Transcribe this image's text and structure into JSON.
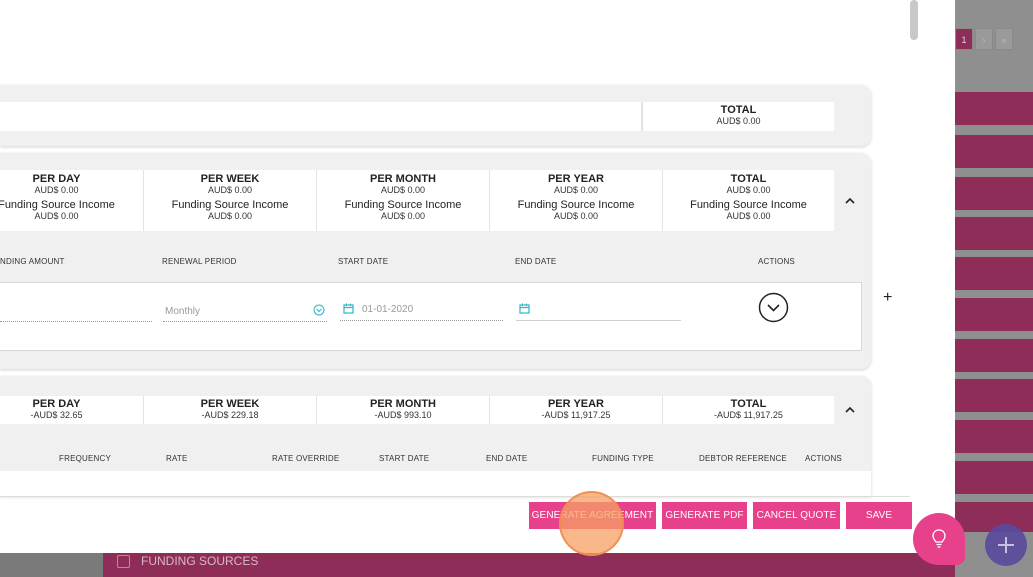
{
  "background": {
    "pager": [
      "1",
      "›",
      "»"
    ],
    "bottom_section_label": "FUNDING SOURCES"
  },
  "panel1": {
    "total_title": "TOTAL",
    "total_value": "AUD$ 0.00"
  },
  "panel2": {
    "summary": [
      {
        "title": "PER DAY",
        "value": "AUD$ 0.00",
        "sub_label": "Funding Source Income",
        "sub_value": "AUD$ 0.00"
      },
      {
        "title": "PER WEEK",
        "value": "AUD$ 0.00",
        "sub_label": "Funding Source Income",
        "sub_value": "AUD$ 0.00"
      },
      {
        "title": "PER MONTH",
        "value": "AUD$ 0.00",
        "sub_label": "Funding Source Income",
        "sub_value": "AUD$ 0.00"
      },
      {
        "title": "PER YEAR",
        "value": "AUD$ 0.00",
        "sub_label": "Funding Source Income",
        "sub_value": "AUD$ 0.00"
      },
      {
        "title": "TOTAL",
        "value": "AUD$ 0.00",
        "sub_label": "Funding Source Income",
        "sub_value": "AUD$ 0.00"
      }
    ],
    "columns": [
      "NDING AMOUNT",
      "RENEWAL PERIOD",
      "START DATE",
      "END DATE",
      "ACTIONS"
    ],
    "row": {
      "renewal_period": "Monthly",
      "start_date": "01-01-2020",
      "end_date": ""
    }
  },
  "panel3": {
    "summary": [
      {
        "title": "PER DAY",
        "value": "-AUD$ 32.65"
      },
      {
        "title": "PER WEEK",
        "value": "-AUD$ 229.18"
      },
      {
        "title": "PER MONTH",
        "value": "-AUD$ 993.10"
      },
      {
        "title": "PER YEAR",
        "value": "-AUD$ 11,917.25"
      },
      {
        "title": "TOTAL",
        "value": "-AUD$ 11,917.25"
      }
    ],
    "columns": [
      "FREQUENCY",
      "RATE",
      "RATE OVERRIDE",
      "START DATE",
      "END DATE",
      "FUNDING TYPE",
      "DEBTOR REFERENCE",
      "ACTIONS"
    ]
  },
  "add_symbol": "+",
  "footer": {
    "generate_agreement": "GENERATE AGREEMENT",
    "generate_pdf": "GENERATE PDF",
    "cancel_quote": "CANCEL QUOTE",
    "save": "SAVE"
  },
  "colors": {
    "accent": "#e6418a",
    "background_row": "#8e2d57",
    "date_icon": "#2bb3c9"
  }
}
